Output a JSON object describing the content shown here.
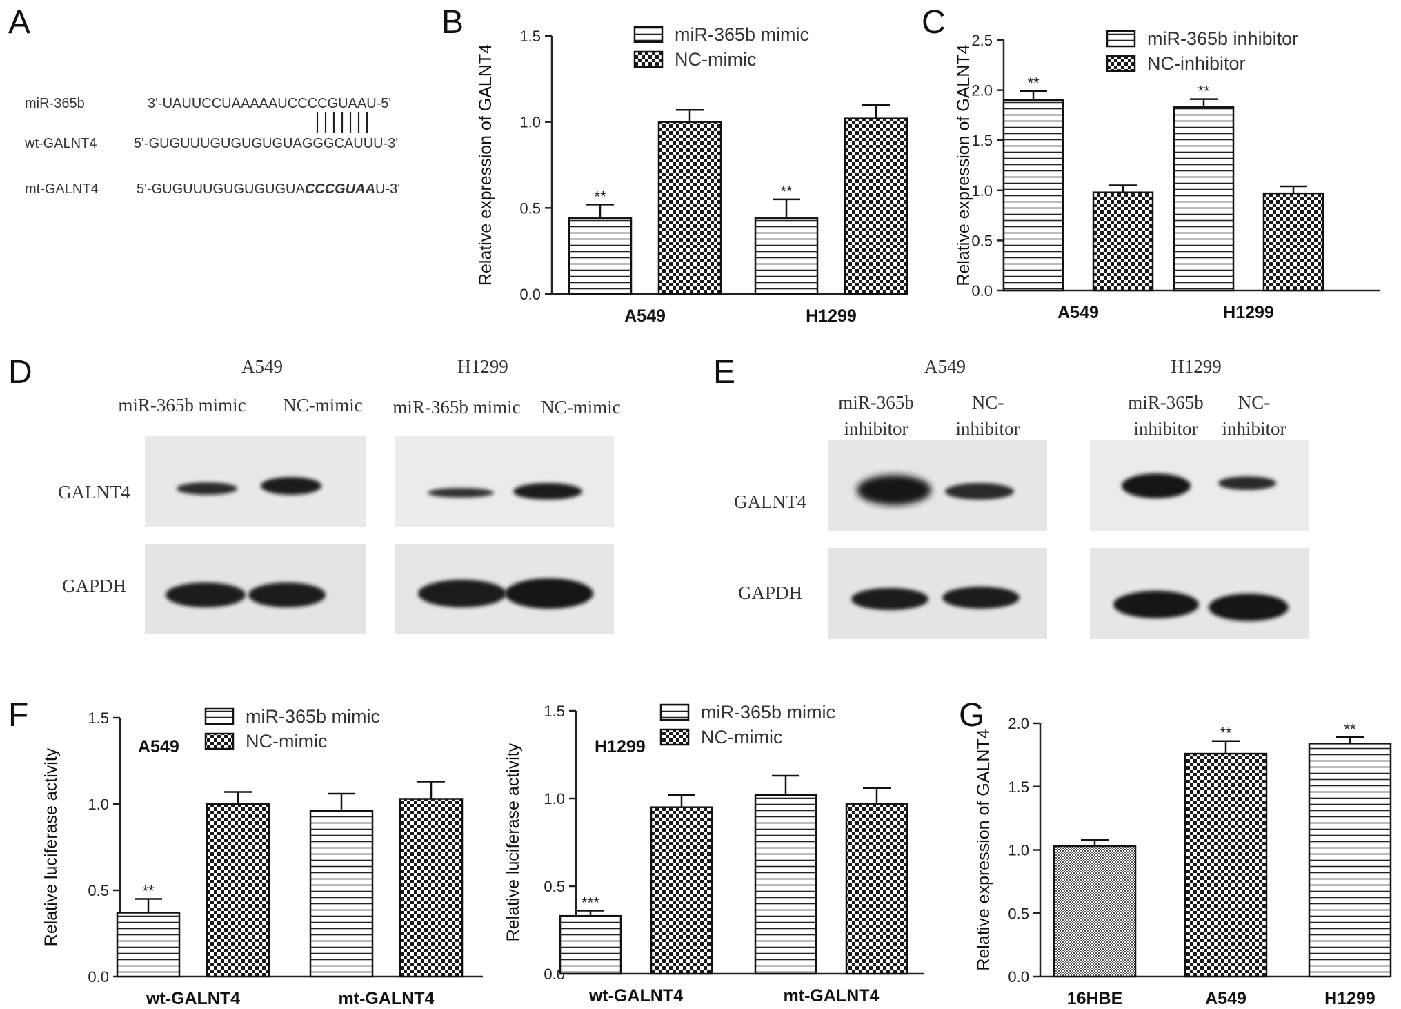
{
  "panels": {
    "A": {
      "letter": "A",
      "rows": [
        {
          "label": "miR-365b",
          "seq": "3'-UAUUCCUAAAAAUCCCCGUAAU-5'"
        },
        {
          "label": "wt-GALNT4",
          "seq": "5'-GUGUUUGUGUGUGUAGGGCAUUU-3'"
        },
        {
          "label": "mt-GALNT4",
          "seq_prefix": "5'-GUGUUUGUGUGUGUA",
          "seq_bold": "CCCGUAA",
          "seq_suffix": "U-3'"
        }
      ],
      "pair_lines": 7
    },
    "D": {
      "letter": "D",
      "groups": [
        {
          "cell": "A549",
          "lanes": [
            "miR-365b mimic",
            "NC-mimic"
          ]
        },
        {
          "cell": "H1299",
          "lanes": [
            "miR-365b mimic",
            "NC-mimic"
          ]
        }
      ],
      "rows": [
        "GALNT4",
        "GAPDH"
      ]
    },
    "E": {
      "letter": "E",
      "groups": [
        {
          "cell": "A549",
          "lanes": [
            [
              "miR-365b",
              "inhibitor"
            ],
            [
              "NC-",
              "inhibitor"
            ]
          ]
        },
        {
          "cell": "H1299",
          "lanes": [
            [
              "miR-365b",
              "inhibitor"
            ],
            [
              "NC-",
              "inhibitor"
            ]
          ]
        }
      ],
      "rows": [
        "GALNT4",
        "GAPDH"
      ]
    }
  },
  "chart_data": [
    {
      "panel": "B",
      "type": "bar",
      "ylabel": "Relative expression of GALNT4",
      "ylim": [
        0,
        1.5
      ],
      "yticks": [
        "0.0",
        "0.5",
        "1.0",
        "1.5"
      ],
      "categories": [
        "A549",
        "H1299"
      ],
      "legend": "top-center",
      "series": [
        {
          "name": "miR-365b mimic",
          "pattern": "hlines",
          "values": [
            0.44,
            0.44
          ],
          "errors": [
            0.08,
            0.11
          ],
          "sig": [
            "**",
            "**"
          ]
        },
        {
          "name": "NC-mimic",
          "pattern": "check",
          "values": [
            1.0,
            1.02
          ],
          "errors": [
            0.07,
            0.08
          ],
          "sig": [
            "",
            ""
          ]
        }
      ]
    },
    {
      "panel": "C",
      "type": "bar",
      "ylabel": "Relative expression of GALNT4",
      "ylim": [
        0,
        2.5
      ],
      "yticks": [
        "0.0",
        "0.5",
        "1.0",
        "1.5",
        "2.0",
        "2.5"
      ],
      "categories": [
        "A549",
        "H1299"
      ],
      "legend": "top-center",
      "series": [
        {
          "name": "miR-365b inhibitor",
          "pattern": "hlines",
          "values": [
            1.9,
            1.83
          ],
          "errors": [
            0.09,
            0.08
          ],
          "sig": [
            "**",
            "**"
          ]
        },
        {
          "name": "NC-inhibitor",
          "pattern": "check",
          "values": [
            0.98,
            0.97
          ],
          "errors": [
            0.07,
            0.07
          ],
          "sig": [
            "",
            ""
          ]
        }
      ]
    },
    {
      "panel": "F",
      "type": "bar",
      "title": "A549",
      "ylabel": "Relative luciferase activity",
      "ylim": [
        0,
        1.5
      ],
      "yticks": [
        "0.0",
        "0.5",
        "1.0",
        "1.5"
      ],
      "categories": [
        "wt-GALNT4",
        "mt-GALNT4"
      ],
      "legend": "top-center",
      "series": [
        {
          "name": "miR-365b mimic",
          "pattern": "hlines",
          "values": [
            0.37,
            0.96
          ],
          "errors": [
            0.08,
            0.1
          ],
          "sig": [
            "**",
            ""
          ]
        },
        {
          "name": "NC-mimic",
          "pattern": "check",
          "values": [
            1.0,
            1.03
          ],
          "errors": [
            0.07,
            0.1
          ],
          "sig": [
            "",
            ""
          ]
        }
      ]
    },
    {
      "panel": "F2",
      "type": "bar",
      "title": "H1299",
      "ylabel": "Relative luciferase activity",
      "ylim": [
        0,
        1.5
      ],
      "yticks": [
        "0.0",
        "0.5",
        "1.0",
        "1.5"
      ],
      "categories": [
        "wt-GALNT4",
        "mt-GALNT4"
      ],
      "legend": "top-center",
      "series": [
        {
          "name": "miR-365b mimic",
          "pattern": "hlines",
          "values": [
            0.33,
            1.02
          ],
          "errors": [
            0.03,
            0.11
          ],
          "sig": [
            "***",
            ""
          ]
        },
        {
          "name": "NC-mimic",
          "pattern": "check",
          "values": [
            0.95,
            0.97
          ],
          "errors": [
            0.07,
            0.09
          ],
          "sig": [
            "",
            ""
          ]
        }
      ]
    },
    {
      "panel": "G",
      "type": "bar",
      "ylabel": "Relative expression of GALNT4",
      "ylim": [
        0,
        2.0
      ],
      "yticks": [
        "0.0",
        "0.5",
        "1.0",
        "1.5",
        "2.0"
      ],
      "categories": [
        "16HBE",
        "A549",
        "H1299"
      ],
      "bars": [
        {
          "category": "16HBE",
          "pattern": "fine",
          "value": 1.03,
          "error": 0.05,
          "sig": ""
        },
        {
          "category": "A549",
          "pattern": "check",
          "value": 1.76,
          "error": 0.1,
          "sig": "**"
        },
        {
          "category": "H1299",
          "pattern": "hlines",
          "value": 1.84,
          "error": 0.05,
          "sig": "**"
        }
      ]
    }
  ]
}
